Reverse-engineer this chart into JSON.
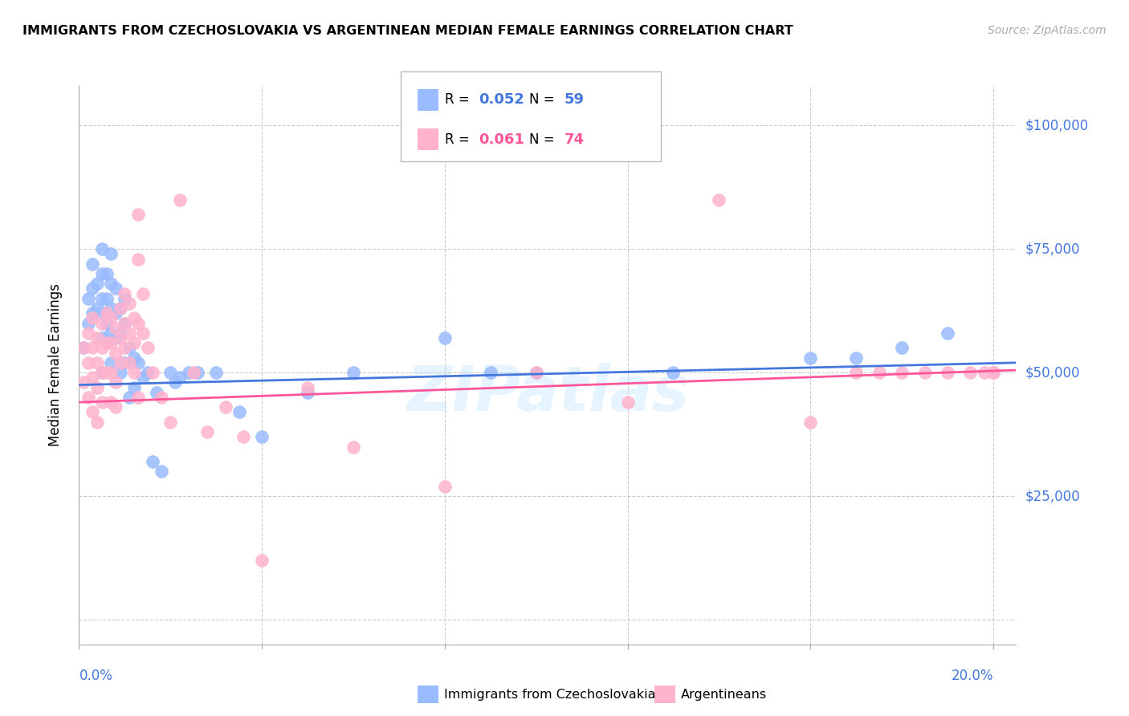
{
  "title": "IMMIGRANTS FROM CZECHOSLOVAKIA VS ARGENTINEAN MEDIAN FEMALE EARNINGS CORRELATION CHART",
  "source": "Source: ZipAtlas.com",
  "ylabel": "Median Female Earnings",
  "xlim": [
    0.0,
    0.205
  ],
  "ylim": [
    -5000,
    108000
  ],
  "color_blue": "#99BBFF",
  "color_pink": "#FFB3CC",
  "color_blue_dark": "#4477DD",
  "color_pink_dark": "#FF5599",
  "color_axis": "#4477DD",
  "watermark": "ZIPatlas",
  "ytick_vals": [
    0,
    25000,
    50000,
    75000,
    100000
  ],
  "ytick_labels": [
    "",
    "$25,000",
    "$50,000",
    "$75,000",
    "$100,000"
  ],
  "xtick_vals": [
    0.0,
    0.04,
    0.08,
    0.12,
    0.16,
    0.2
  ],
  "blue_x": [
    0.001,
    0.002,
    0.002,
    0.003,
    0.003,
    0.003,
    0.004,
    0.004,
    0.005,
    0.005,
    0.005,
    0.005,
    0.005,
    0.005,
    0.006,
    0.006,
    0.006,
    0.007,
    0.007,
    0.007,
    0.007,
    0.007,
    0.008,
    0.008,
    0.008,
    0.009,
    0.009,
    0.009,
    0.01,
    0.01,
    0.01,
    0.011,
    0.011,
    0.012,
    0.012,
    0.013,
    0.014,
    0.015,
    0.016,
    0.017,
    0.018,
    0.02,
    0.021,
    0.022,
    0.024,
    0.026,
    0.03,
    0.035,
    0.04,
    0.05,
    0.06,
    0.08,
    0.09,
    0.1,
    0.13,
    0.16,
    0.17,
    0.18,
    0.19
  ],
  "blue_y": [
    55000,
    65000,
    60000,
    72000,
    67000,
    62000,
    68000,
    63000,
    75000,
    70000,
    65000,
    62000,
    57000,
    50000,
    70000,
    65000,
    60000,
    74000,
    68000,
    63000,
    58000,
    52000,
    67000,
    62000,
    57000,
    63000,
    58000,
    50000,
    65000,
    60000,
    52000,
    55000,
    45000,
    53000,
    47000,
    52000,
    49000,
    50000,
    32000,
    46000,
    30000,
    50000,
    48000,
    49000,
    50000,
    50000,
    50000,
    42000,
    37000,
    46000,
    50000,
    57000,
    50000,
    50000,
    50000,
    53000,
    53000,
    55000,
    58000
  ],
  "pink_x": [
    0.001,
    0.001,
    0.002,
    0.002,
    0.002,
    0.003,
    0.003,
    0.003,
    0.003,
    0.004,
    0.004,
    0.004,
    0.004,
    0.005,
    0.005,
    0.005,
    0.005,
    0.006,
    0.006,
    0.006,
    0.007,
    0.007,
    0.007,
    0.007,
    0.008,
    0.008,
    0.008,
    0.008,
    0.009,
    0.009,
    0.009,
    0.01,
    0.01,
    0.01,
    0.011,
    0.011,
    0.011,
    0.012,
    0.012,
    0.012,
    0.013,
    0.013,
    0.013,
    0.013,
    0.014,
    0.014,
    0.015,
    0.016,
    0.018,
    0.02,
    0.022,
    0.025,
    0.028,
    0.032,
    0.036,
    0.04,
    0.05,
    0.06,
    0.08,
    0.1,
    0.12,
    0.14,
    0.16,
    0.17,
    0.175,
    0.18,
    0.185,
    0.19,
    0.195,
    0.198,
    0.2,
    0.2,
    0.2,
    0.2
  ],
  "pink_y": [
    55000,
    48000,
    58000,
    52000,
    45000,
    61000,
    55000,
    49000,
    42000,
    57000,
    52000,
    47000,
    40000,
    60000,
    55000,
    50000,
    44000,
    62000,
    56000,
    50000,
    61000,
    56000,
    50000,
    44000,
    59000,
    54000,
    48000,
    43000,
    63000,
    57000,
    52000,
    66000,
    60000,
    55000,
    64000,
    58000,
    52000,
    61000,
    56000,
    50000,
    82000,
    73000,
    60000,
    45000,
    66000,
    58000,
    55000,
    50000,
    45000,
    40000,
    85000,
    50000,
    38000,
    43000,
    37000,
    12000,
    47000,
    35000,
    27000,
    50000,
    44000,
    85000,
    40000,
    50000,
    50000,
    50000,
    50000,
    50000,
    50000,
    50000,
    50000,
    50000,
    50000,
    50000
  ],
  "blue_trend_x0": 0.0,
  "blue_trend_x1": 0.205,
  "blue_trend_y0": 47500,
  "blue_trend_y1": 52000,
  "pink_trend_x0": 0.0,
  "pink_trend_x1": 0.205,
  "pink_trend_y0": 44000,
  "pink_trend_y1": 50500
}
